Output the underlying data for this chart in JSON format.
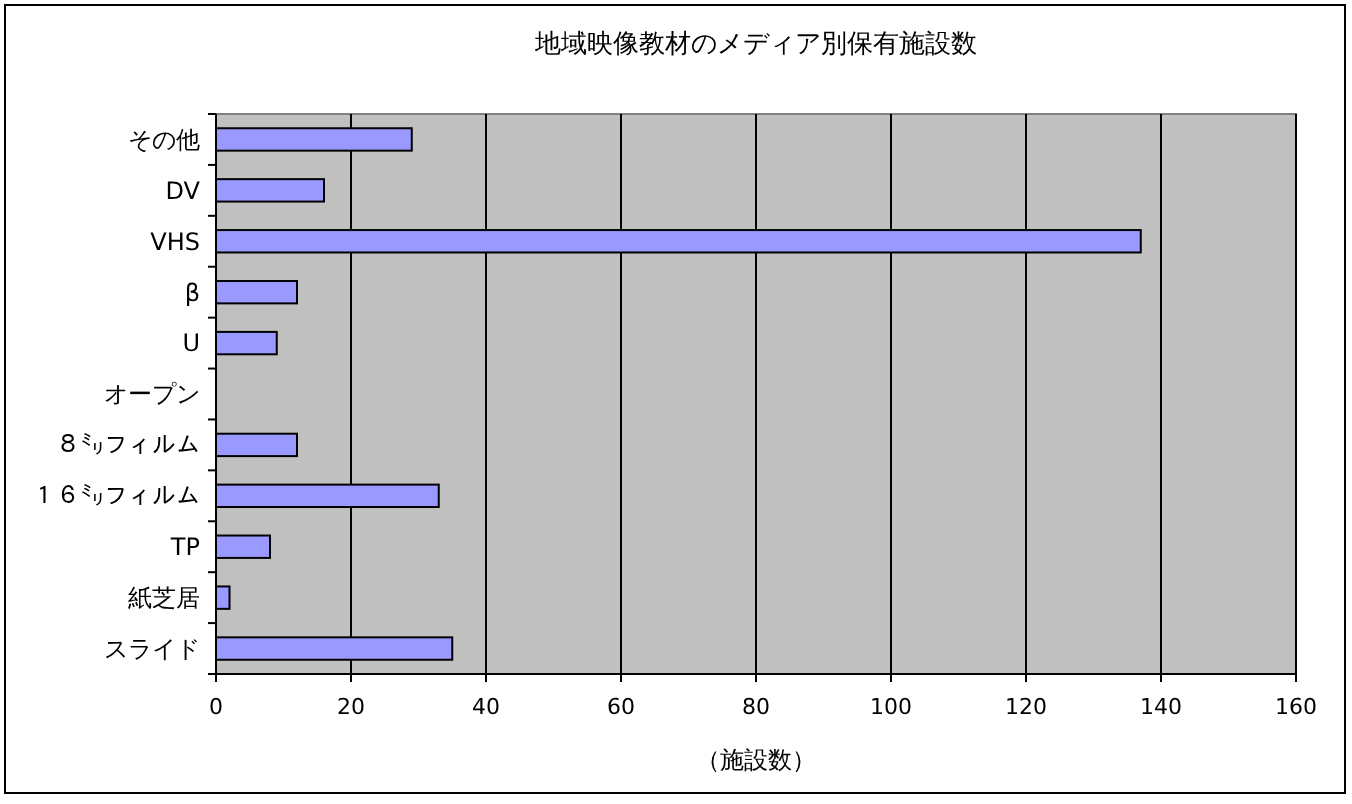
{
  "chart_data": {
    "type": "bar",
    "orientation": "horizontal",
    "title": "地域映像教材のメディア別保有施設数",
    "xlabel": "（施設数）",
    "categories": [
      "その他",
      "DV",
      "VHS",
      "β",
      "U",
      "オープン",
      "８㍉フィルム",
      "１６㍉フィルム",
      "TP",
      "紙芝居",
      "スライド"
    ],
    "values": [
      29,
      16,
      137,
      12,
      9,
      0,
      12,
      33,
      8,
      2,
      35
    ],
    "color": "#9999ff",
    "xlim": [
      0,
      160
    ],
    "xticks": [
      0,
      20,
      40,
      60,
      80,
      100,
      120,
      140,
      160
    ],
    "grid": "x"
  }
}
